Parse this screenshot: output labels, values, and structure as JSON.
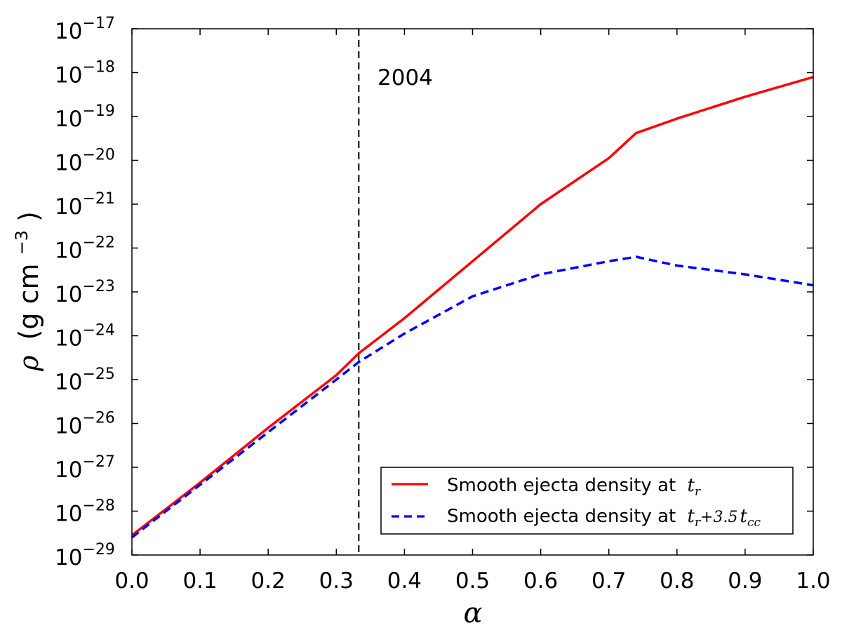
{
  "chart_data": {
    "type": "line",
    "title": "",
    "xlabel": "α",
    "ylabel_prefix": "ρ",
    "ylabel_units": "(g cm",
    "ylabel_exp": "−3",
    "ylabel_close": ")",
    "xlim": [
      0.0,
      1.0
    ],
    "ylim_log10": [
      -29,
      -17
    ],
    "yscale": "log",
    "x_ticks": [
      "0.0",
      "0.1",
      "0.2",
      "0.3",
      "0.4",
      "0.5",
      "0.6",
      "0.7",
      "0.8",
      "0.9",
      "1.0"
    ],
    "x_tick_values": [
      0.0,
      0.1,
      0.2,
      0.3,
      0.4,
      0.5,
      0.6,
      0.7,
      0.8,
      0.9,
      1.0
    ],
    "y_ticks": [
      {
        "base": "10",
        "exp": "−29",
        "log": -29
      },
      {
        "base": "10",
        "exp": "−28",
        "log": -28
      },
      {
        "base": "10",
        "exp": "−27",
        "log": -27
      },
      {
        "base": "10",
        "exp": "−26",
        "log": -26
      },
      {
        "base": "10",
        "exp": "−25",
        "log": -25
      },
      {
        "base": "10",
        "exp": "−24",
        "log": -24
      },
      {
        "base": "10",
        "exp": "−23",
        "log": -23
      },
      {
        "base": "10",
        "exp": "−22",
        "log": -22
      },
      {
        "base": "10",
        "exp": "−21",
        "log": -21
      },
      {
        "base": "10",
        "exp": "−20",
        "log": -20
      },
      {
        "base": "10",
        "exp": "−19",
        "log": -19
      },
      {
        "base": "10",
        "exp": "−18",
        "log": -18
      },
      {
        "base": "10",
        "exp": "−17",
        "log": -17
      }
    ],
    "series": [
      {
        "name": "Smooth ejecta density at t_r",
        "legend_text": "Smooth ejecta density at",
        "legend_math": "t",
        "legend_math_sub": "r",
        "color": "#ff0000",
        "style": "solid",
        "x": [
          0.0,
          0.1,
          0.2,
          0.3,
          0.333,
          0.4,
          0.5,
          0.6,
          0.7,
          0.74,
          0.8,
          0.9,
          1.0
        ],
        "log_values": [
          -28.55,
          -27.35,
          -26.1,
          -24.9,
          -24.4,
          -23.6,
          -22.3,
          -21.0,
          -19.95,
          -19.38,
          -19.05,
          -18.55,
          -18.1
        ]
      },
      {
        "name": "Smooth ejecta density at t_r + 3.5 t_cc",
        "legend_text": "Smooth ejecta density at",
        "legend_math": "t",
        "legend_math_sub": "r",
        "legend_math_rest": "+3.5",
        "legend_math2": "t",
        "legend_math2_sub": "cc",
        "color": "#0000ff",
        "style": "dashed",
        "x": [
          0.0,
          0.1,
          0.2,
          0.3,
          0.333,
          0.4,
          0.5,
          0.6,
          0.7,
          0.74,
          0.8,
          0.9,
          1.0
        ],
        "log_values": [
          -28.6,
          -27.4,
          -26.2,
          -25.0,
          -24.6,
          -23.95,
          -23.1,
          -22.6,
          -22.3,
          -22.2,
          -22.4,
          -22.6,
          -22.85
        ]
      }
    ],
    "vline": {
      "x": 0.333,
      "color": "#000000",
      "style": "dashed"
    },
    "annotation": "2004",
    "legend_position": "lower-right"
  }
}
